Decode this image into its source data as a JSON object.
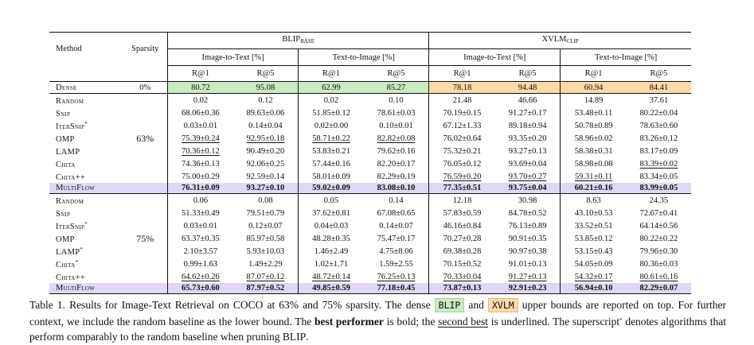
{
  "header": {
    "method": "Method",
    "sparsity": "Sparsity",
    "models": [
      {
        "name": "BLIP",
        "sub": "BASE"
      },
      {
        "name": "XVLM",
        "sub": "CLIP"
      }
    ],
    "tasks": [
      "Image-to-Text [%]",
      "Text-to-Image [%]",
      "Image-to-Text [%]",
      "Text-to-Image [%]"
    ],
    "metrics": [
      "R@1",
      "R@5",
      "R@1",
      "R@5",
      "R@1",
      "R@5",
      "R@1",
      "R@5"
    ]
  },
  "dense": {
    "method": "Dense",
    "sparsity": "0%",
    "values": [
      "80.72",
      "95.08",
      "62.99",
      "85.27",
      "78.18",
      "94.48",
      "60.94",
      "84.41"
    ]
  },
  "group63": {
    "sparsity": "63%",
    "rows": [
      {
        "method": "Random",
        "star": "",
        "values": [
          "0.02",
          "0.12",
          "0.02",
          "0.10",
          "21.48",
          "46.66",
          "14.89",
          "37.61"
        ]
      },
      {
        "method": "Snip",
        "star": "",
        "values": [
          "68.06±0.36",
          "89.63±0.06",
          "51.85±0.12",
          "78.61±0.03",
          "70.19±0.15",
          "91.27±0.17",
          "53.48±0.11",
          "80.22±0.04"
        ]
      },
      {
        "method": "IterSnip",
        "star": "*",
        "values": [
          "0.03±0.01",
          "0.14±0.04",
          "0.02±0.00",
          "0.10±0.01",
          "67.12±1.33",
          "89.18±0.94",
          "50.78±0.89",
          "78.63±0.60"
        ]
      },
      {
        "method": "OMP",
        "star": "",
        "values": [
          "75.39±0.24",
          "92.95±0.18",
          "58.71±0.22",
          "82.82±0.08",
          "76.02±0.64",
          "93.35±0.20",
          "58.96±0.02",
          "83.26±0.12"
        ]
      },
      {
        "method": "LAMP",
        "star": "",
        "values": [
          "70.36±0.12",
          "90.49±0.20",
          "53.83±0.21",
          "79.62±0.16",
          "75.32±0.21",
          "93.27±0.13",
          "58.38±0.31",
          "83.17±0.09"
        ]
      },
      {
        "method": "Chita",
        "star": "",
        "values": [
          "74.36±0.13",
          "92.06±0.25",
          "57.44±0.16",
          "82.20±0.17",
          "76.05±0.12",
          "93.69±0.04",
          "58.98±0.08",
          "83.39±0.02"
        ]
      },
      {
        "method": "Chita++",
        "star": "",
        "values": [
          "75.00±0.29",
          "92.59±0.14",
          "58.01±0.09",
          "82.29±0.19",
          "76.59±0.20",
          "93.70±0.27",
          "59.31±0.11",
          "83.34±0.05"
        ]
      }
    ],
    "multiflow": {
      "method": "MultiFlow",
      "values": [
        "76.31±0.09",
        "93.27±0.10",
        "59.02±0.09",
        "83.08±0.10",
        "77.35±0.51",
        "93.75±0.04",
        "60.21±0.16",
        "83.99±0.05"
      ]
    }
  },
  "group75": {
    "sparsity": "75%",
    "rows": [
      {
        "method": "Random",
        "star": "",
        "values": [
          "0.06",
          "0.08",
          "0.05",
          "0.14",
          "12.18",
          "30.98",
          "8.63",
          "24.35"
        ]
      },
      {
        "method": "Snip",
        "star": "",
        "values": [
          "51.33±0.49",
          "79.51±0.79",
          "37.62±0.81",
          "67.08±0.65",
          "57.83±0.59",
          "84.78±0.52",
          "43.10±0.53",
          "72.67±0.41"
        ]
      },
      {
        "method": "IterSnip",
        "star": "*",
        "values": [
          "0.03±0.01",
          "0.12±0.07",
          "0.04±0.03",
          "0.14±0.07",
          "46.16±0.84",
          "76.13±0.89",
          "33.52±0.51",
          "64.14±0.56"
        ]
      },
      {
        "method": "OMP",
        "star": "",
        "values": [
          "63.37±0.35",
          "85.97±0.58",
          "48.28±0.35",
          "75.47±0.17",
          "70.27±0.28",
          "90.91±0.35",
          "53.85±0.12",
          "80.22±0.22"
        ]
      },
      {
        "method": "LAMP",
        "star": "*",
        "values": [
          "2.10±3.57",
          "5.93±10.03",
          "1.46±2.49",
          "4.75±8.06",
          "69.38±0.28",
          "90.97±0.38",
          "53.15±0.43",
          "79.96±0.30"
        ]
      },
      {
        "method": "Chita",
        "star": "*",
        "values": [
          "0.99±1.63",
          "1.49±2.29",
          "1.02±1.71",
          "1.59±2.55",
          "70.15±0.52",
          "91.01±0.13",
          "54.05±0.09",
          "80.36±0.03"
        ]
      },
      {
        "method": "Chita++",
        "star": "",
        "values": [
          "64.62±0.26",
          "87.07±0.12",
          "48.72±0.14",
          "76.25±0.13",
          "70.33±0.04",
          "91.27±0.13",
          "54.32±0.17",
          "80.61±0.16"
        ]
      }
    ],
    "multiflow": {
      "method": "MultiFlow",
      "values": [
        "65.73±0.60",
        "87.97±0.52",
        "49.85±0.59",
        "77.18±0.45",
        "73.87±0.13",
        "92.91±0.23",
        "56.94±0.10",
        "82.29±0.07"
      ]
    }
  },
  "caption": {
    "label": "Table 1.",
    "p1": "Results for Image-Text Retrieval on COCO at 63% and 75% sparsity. The dense",
    "blip": "BLIP",
    "and": "and",
    "xvlm": "XVLM",
    "p2": "upper bounds are reported on top. For further context, we include the random baseline as the lower bound. The",
    "best": "best performer",
    "p3": "is bold; the",
    "second": "second best",
    "p4": "is underlined.",
    "p5a": "The superscript",
    "star": "*",
    "p5b": "denotes algorithms that perform comparably to the random baseline when pruning",
    "p5c": "BLIP",
    "p5d": "."
  }
}
